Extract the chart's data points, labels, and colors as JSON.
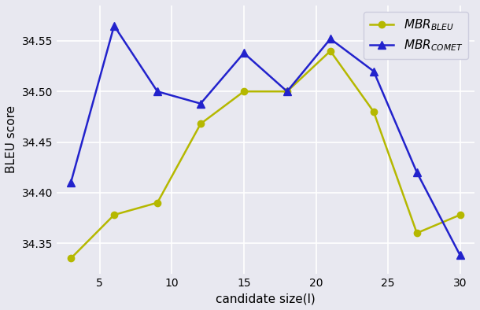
{
  "x": [
    3,
    6,
    9,
    12,
    15,
    18,
    21,
    24,
    27,
    30
  ],
  "mbr_bleu": [
    34.335,
    34.378,
    34.39,
    34.468,
    34.5,
    34.5,
    34.54,
    34.48,
    34.36,
    34.378
  ],
  "mbr_comet": [
    34.41,
    34.565,
    34.5,
    34.488,
    34.538,
    34.5,
    34.552,
    34.52,
    34.42,
    34.338
  ],
  "bleu_color": "#b5b800",
  "comet_color": "#2222cc",
  "bg_color": "#e8e8f0",
  "grid_color": "#ffffff",
  "xlabel": "candidate size(l)",
  "ylabel": "BLEU score",
  "ylim_min": 34.32,
  "ylim_max": 34.585,
  "yticks": [
    34.35,
    34.4,
    34.45,
    34.5,
    34.55
  ],
  "xticks": [
    5,
    10,
    15,
    20,
    25,
    30
  ]
}
